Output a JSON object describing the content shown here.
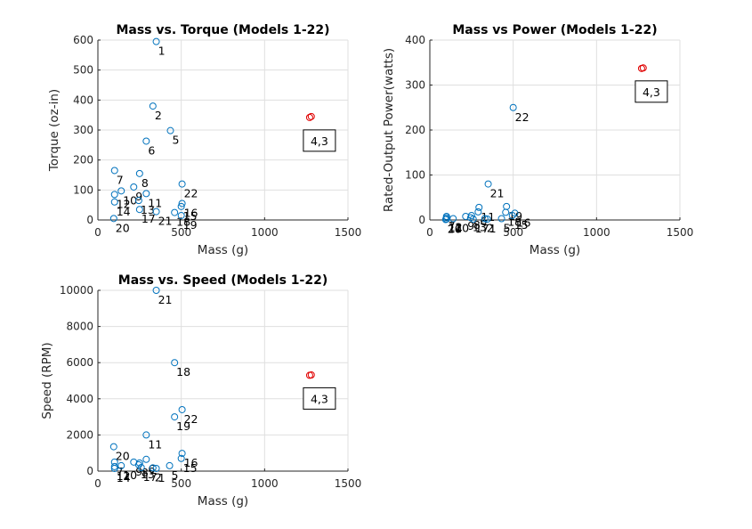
{
  "chart_data": [
    {
      "type": "scatter",
      "title": "Mass vs. Torque (Models 1-22)",
      "xlabel": "Mass (g)",
      "ylabel": "Torque (oz-in)",
      "xlim": [
        0,
        1500
      ],
      "ylim": [
        0,
        600
      ],
      "xticks": [
        0,
        500,
        1000,
        1500
      ],
      "yticks": [
        0,
        100,
        200,
        300,
        400,
        500,
        600
      ],
      "grid": true,
      "marker_color": "#0072bd",
      "highlight_color": "#e00000",
      "points": [
        {
          "label": "1",
          "x": 350,
          "y": 595
        },
        {
          "label": "2",
          "x": 330,
          "y": 380
        },
        {
          "label": "5",
          "x": 435,
          "y": 298
        },
        {
          "label": "6",
          "x": 290,
          "y": 263
        },
        {
          "label": "7",
          "x": 100,
          "y": 165
        },
        {
          "label": "8",
          "x": 250,
          "y": 155
        },
        {
          "label": "9",
          "x": 215,
          "y": 110
        },
        {
          "label": "10",
          "x": 140,
          "y": 97
        },
        {
          "label": "11",
          "x": 290,
          "y": 88
        },
        {
          "label": "12",
          "x": 100,
          "y": 85
        },
        {
          "label": "13",
          "x": 245,
          "y": 65
        },
        {
          "label": "14",
          "x": 100,
          "y": 60
        },
        {
          "label": "15",
          "x": 500,
          "y": 45
        },
        {
          "label": "16",
          "x": 505,
          "y": 55
        },
        {
          "label": "17",
          "x": 250,
          "y": 35
        },
        {
          "label": "18",
          "x": 460,
          "y": 25
        },
        {
          "label": "19",
          "x": 500,
          "y": 15
        },
        {
          "label": "20",
          "x": 95,
          "y": 5
        },
        {
          "label": "21",
          "x": 350,
          "y": 28
        },
        {
          "label": "22",
          "x": 505,
          "y": 120
        }
      ],
      "highlight_points": [
        {
          "x": 1270,
          "y": 342
        },
        {
          "x": 1280,
          "y": 345
        }
      ],
      "annotation_box": "4,3"
    },
    {
      "type": "scatter",
      "title": "Mass vs Power (Models 1-22)",
      "xlabel": "Mass (g)",
      "ylabel": "Rated-Output Power(watts)",
      "xlim": [
        0,
        1500
      ],
      "ylim": [
        0,
        400
      ],
      "xticks": [
        0,
        500,
        1000,
        1500
      ],
      "yticks": [
        0,
        100,
        200,
        300,
        400
      ],
      "grid": true,
      "marker_color": "#0072bd",
      "highlight_color": "#e00000",
      "points": [
        {
          "label": "22",
          "x": 500,
          "y": 250
        },
        {
          "label": "21",
          "x": 350,
          "y": 80
        },
        {
          "label": "19",
          "x": 460,
          "y": 30
        },
        {
          "label": "16",
          "x": 510,
          "y": 15
        },
        {
          "label": "18",
          "x": 455,
          "y": 17
        },
        {
          "label": "15",
          "x": 495,
          "y": 10
        },
        {
          "label": "5",
          "x": 430,
          "y": 3
        },
        {
          "label": "11",
          "x": 295,
          "y": 28
        },
        {
          "label": "6",
          "x": 290,
          "y": 18
        },
        {
          "label": "8",
          "x": 250,
          "y": 10
        },
        {
          "label": "9",
          "x": 215,
          "y": 8
        },
        {
          "label": "7",
          "x": 100,
          "y": 8
        },
        {
          "label": "2",
          "x": 330,
          "y": 3
        },
        {
          "label": "1",
          "x": 345,
          "y": 2
        },
        {
          "label": "10",
          "x": 140,
          "y": 3
        },
        {
          "label": "12",
          "x": 100,
          "y": 5
        },
        {
          "label": "14",
          "x": 100,
          "y": 2
        },
        {
          "label": "20",
          "x": 95,
          "y": 1
        },
        {
          "label": "13",
          "x": 245,
          "y": 5
        },
        {
          "label": "17",
          "x": 260,
          "y": 2
        }
      ],
      "highlight_points": [
        {
          "x": 1270,
          "y": 337
        },
        {
          "x": 1280,
          "y": 338
        }
      ],
      "annotation_box": "4,3"
    },
    {
      "type": "scatter",
      "title": "Mass vs. Speed (Models 1-22)",
      "xlabel": "Mass (g)",
      "ylabel": "Speed (RPM)",
      "xlim": [
        0,
        1500
      ],
      "ylim": [
        0,
        10000
      ],
      "xticks": [
        0,
        500,
        1000,
        1500
      ],
      "yticks": [
        0,
        2000,
        4000,
        6000,
        8000,
        10000
      ],
      "grid": true,
      "marker_color": "#0072bd",
      "highlight_color": "#e00000",
      "points": [
        {
          "label": "21",
          "x": 350,
          "y": 10000
        },
        {
          "label": "18",
          "x": 460,
          "y": 6000
        },
        {
          "label": "22",
          "x": 505,
          "y": 3400
        },
        {
          "label": "19",
          "x": 460,
          "y": 3000
        },
        {
          "label": "11",
          "x": 290,
          "y": 2000
        },
        {
          "label": "20",
          "x": 95,
          "y": 1350
        },
        {
          "label": "16",
          "x": 505,
          "y": 980
        },
        {
          "label": "15",
          "x": 500,
          "y": 700
        },
        {
          "label": "5",
          "x": 430,
          "y": 300
        },
        {
          "label": "7",
          "x": 100,
          "y": 500
        },
        {
          "label": "10",
          "x": 140,
          "y": 300
        },
        {
          "label": "12",
          "x": 100,
          "y": 250
        },
        {
          "label": "14",
          "x": 100,
          "y": 150
        },
        {
          "label": "9",
          "x": 215,
          "y": 500
        },
        {
          "label": "8",
          "x": 250,
          "y": 450
        },
        {
          "label": "13",
          "x": 245,
          "y": 350
        },
        {
          "label": "6",
          "x": 290,
          "y": 650
        },
        {
          "label": "17",
          "x": 260,
          "y": 200
        },
        {
          "label": "2",
          "x": 330,
          "y": 180
        },
        {
          "label": "1",
          "x": 350,
          "y": 150
        }
      ],
      "highlight_points": [
        {
          "x": 1270,
          "y": 5300
        },
        {
          "x": 1280,
          "y": 5320
        }
      ],
      "annotation_box": "4,3"
    }
  ]
}
